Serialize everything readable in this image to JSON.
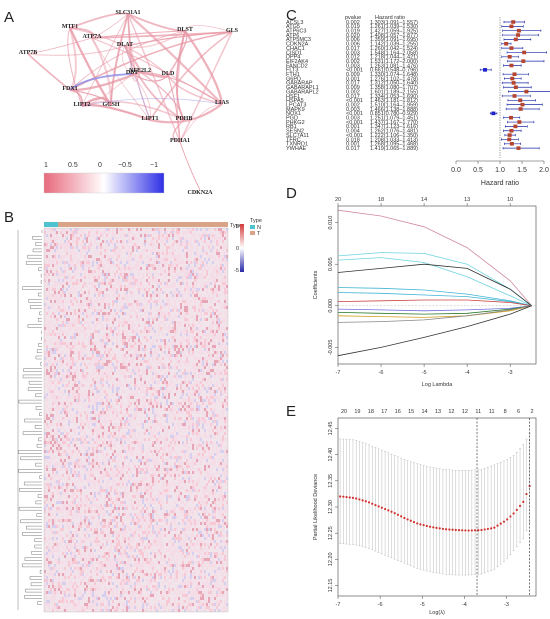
{
  "panels": {
    "A": "A",
    "B": "B",
    "C": "C",
    "D": "D",
    "E": "E"
  },
  "network": {
    "genes": [
      {
        "name": "SLC31A1"
      },
      {
        "name": "MTF1"
      },
      {
        "name": "DLST"
      },
      {
        "name": "GLS"
      },
      {
        "name": "ATP7A"
      },
      {
        "name": "DLAT"
      },
      {
        "name": "ATP7B"
      },
      {
        "name": "NFE2L2"
      },
      {
        "name": "DBT"
      },
      {
        "name": "DLD"
      },
      {
        "name": "FDX1"
      },
      {
        "name": "LIPT2"
      },
      {
        "name": "GCSH"
      },
      {
        "name": "LIPT1"
      },
      {
        "name": "PDHB"
      },
      {
        "name": "LIAS"
      },
      {
        "name": "PDHA1"
      },
      {
        "name": "CDKN2A"
      }
    ],
    "legend_ticks": [
      "1",
      "0.5",
      "0",
      "−0.5",
      "−1"
    ],
    "colors": {
      "positive": "#e8697c",
      "negative": "#2f2fe6",
      "edge": "#e898a6"
    }
  },
  "heatmap": {
    "type_label": "Type",
    "legend_title": "Type",
    "groups": [
      {
        "label": "N",
        "color": "#4ec2cf"
      },
      {
        "label": "T",
        "color": "#d9a387"
      }
    ],
    "scale_ticks": [
      "5",
      "0",
      "-5"
    ],
    "colors": {
      "high": "#d23a3a",
      "low": "#2828a8"
    }
  },
  "forest": {
    "col_pvalue": "pvalue",
    "col_hr": "Hazard ratio",
    "xlabel": "Hazard ratio",
    "xticks": [
      "0.0",
      "0.5",
      "1.0",
      "1.5",
      "2.0"
    ],
    "rows": [
      {
        "gene": "ACSL3",
        "p": "0.002",
        "hr": 1.3,
        "lo": 1.09,
        "hi": 1.56,
        "hr_text": "1.303(1.091–1.557)"
      },
      {
        "gene": "ATG5",
        "p": "0.019",
        "hr": 1.26,
        "lo": 1.04,
        "hi": 1.53,
        "hr_text": "1.261(1.039–1.530)"
      },
      {
        "gene": "ATP6C3",
        "p": "0.019",
        "hr": 1.43,
        "lo": 1.06,
        "hi": 1.93,
        "hr_text": "1.427(1.059–1.925)"
      },
      {
        "gene": "ATP6",
        "p": "0.020",
        "hr": 1.41,
        "lo": 1.06,
        "hi": 1.88,
        "hr_text": "1.408(1.057–1.877)"
      },
      {
        "gene": "ATP5MC3",
        "p": "0.006",
        "hr": 1.36,
        "lo": 1.09,
        "hi": 1.7,
        "hr_text": "1.359(1.091–1.695)"
      },
      {
        "gene": "CDKN2A",
        "p": "0.006",
        "hr": 1.14,
        "lo": 1.04,
        "hi": 1.25,
        "hr_text": "1.142(1.039–1.255)"
      },
      {
        "gene": "CHAC1",
        "p": "0.017",
        "hr": 1.26,
        "lo": 1.04,
        "hi": 1.52,
        "hr_text": "1.260(1.042–1.524)"
      },
      {
        "gene": "CISD1",
        "p": "0.003",
        "hr": 1.55,
        "lo": 1.16,
        "hi": 2.06,
        "hr_text": "1.548(1.164–2.058)"
      },
      {
        "gene": "DPP4",
        "p": "0.012",
        "hr": 1.22,
        "lo": 1.04,
        "hi": 1.42,
        "hr_text": "1.218(1.044–1.421)"
      },
      {
        "gene": "EIF2AK4",
        "p": "0.002",
        "hr": 1.53,
        "lo": 1.17,
        "hi": 2.0,
        "hr_text": "1.531(1.172–2.000)"
      },
      {
        "gene": "FANCD2",
        "p": "0.003",
        "hr": 1.26,
        "lo": 1.08,
        "hi": 1.48,
        "hr_text": "1.263(1.081–1.476)"
      },
      {
        "gene": "FLT3",
        "p": "<0.001",
        "hr": 0.66,
        "lo": 0.55,
        "hi": 0.8,
        "hr_text": "0.661(0.548–0.796)"
      },
      {
        "gene": "FTH1",
        "p": "0.009",
        "hr": 1.33,
        "lo": 1.07,
        "hi": 1.65,
        "hr_text": "1.330(1.074–1.648)"
      },
      {
        "gene": "G6PD",
        "p": "0.001",
        "hr": 1.28,
        "lo": 1.1,
        "hi": 1.48,
        "hr_text": "1.276(1.102–1.478)"
      },
      {
        "gene": "GABARAP",
        "p": "0.017",
        "hr": 1.31,
        "lo": 1.05,
        "hi": 1.64,
        "hr_text": "1.312(1.050–1.640)"
      },
      {
        "gene": "GABARAPL1",
        "p": "0.009",
        "hr": 1.36,
        "lo": 1.08,
        "hi": 1.71,
        "hr_text": "1.358(1.080–1.707)"
      },
      {
        "gene": "GABARAPL2",
        "p": "0.002",
        "hr": 1.6,
        "lo": 1.19,
        "hi": 2.15,
        "hr_text": "1.601(1.189–2.155)"
      },
      {
        "gene": "HSF1",
        "p": "0.017",
        "hr": 1.33,
        "lo": 1.05,
        "hi": 1.69,
        "hr_text": "1.334(1.053–1.690)"
      },
      {
        "gene": "HSPA5",
        "p": "<0.001",
        "hr": 1.46,
        "lo": 1.18,
        "hi": 1.81,
        "hr_text": "1.463(1.181–1.812)"
      },
      {
        "gene": "LPCAT3",
        "p": "0.002",
        "hr": 1.51,
        "lo": 1.16,
        "hi": 1.96,
        "hr_text": "1.510(1.164–1.959)"
      },
      {
        "gene": "MAPK9",
        "p": "0.003",
        "hr": 1.47,
        "lo": 1.14,
        "hi": 1.89,
        "hr_text": "1.466(1.138–1.888)"
      },
      {
        "gene": "NOX1",
        "p": "<0.001",
        "hr": 0.85,
        "lo": 0.78,
        "hi": 0.93,
        "hr_text": "0.851(0.780–0.929)"
      },
      {
        "gene": "PGD",
        "p": "0.003",
        "hr": 1.25,
        "lo": 1.08,
        "hi": 1.45,
        "hr_text": "1.251(1.079–1.451)"
      },
      {
        "gene": "PHKG2",
        "p": "<0.001",
        "hr": 1.44,
        "lo": 1.17,
        "hi": 1.77,
        "hr_text": "1.437(1.167–1.770)"
      },
      {
        "gene": "RB1",
        "p": "0.001",
        "hr": 1.35,
        "lo": 1.12,
        "hi": 1.62,
        "hr_text": "1.347(1.123–1.616)"
      },
      {
        "gene": "SESN2",
        "p": "0.004",
        "hr": 1.26,
        "lo": 1.08,
        "hi": 1.48,
        "hr_text": "1.262(1.076–1.481)"
      },
      {
        "gene": "SLC7A11",
        "p": "<0.001",
        "hr": 1.22,
        "lo": 1.11,
        "hi": 1.35,
        "hr_text": "1.222(1.106–1.350)"
      },
      {
        "gene": "TFRC",
        "p": "0.018",
        "hr": 1.21,
        "lo": 1.03,
        "hi": 1.42,
        "hr_text": "1.208(1.033–1.413)"
      },
      {
        "gene": "TXNRD1",
        "p": "0.001",
        "hr": 1.27,
        "lo": 1.1,
        "hi": 1.47,
        "hr_text": "1.268(1.095–1.468)"
      },
      {
        "gene": "YWHAE",
        "p": "0.017",
        "hr": 1.42,
        "lo": 1.07,
        "hi": 1.89,
        "hr_text": "1.419(1.065–1.889)"
      }
    ],
    "colors": {
      "risk": "#b5452f",
      "protective": "#2222cc",
      "ci": "#1b2aa8"
    }
  },
  "lasso_coef": {
    "xlabel": "Log Lambda",
    "ylabel": "Coefficients",
    "xticks": [
      "-7",
      "-6",
      "-5",
      "-4",
      "-3"
    ],
    "yticks": [
      "-0.005",
      "0.000",
      "0.005",
      "0.010"
    ],
    "top_ticks": [
      "20",
      "18",
      "14",
      "13",
      "10"
    ]
  },
  "chart_data": [
    {
      "type": "line",
      "xlabel": "Log Lambda",
      "ylabel": "Coefficients",
      "xlim": [
        -7,
        -2.4
      ],
      "ylim": [
        -0.007,
        0.012
      ],
      "series": [
        {
          "x": [
            -7,
            -6,
            -5,
            -4,
            -3,
            -2.5
          ],
          "values": [
            0.0115,
            0.0108,
            0.0095,
            0.007,
            0.003,
            0.0
          ]
        },
        {
          "x": [
            -7,
            -6,
            -5,
            -4,
            -3,
            -2.5
          ],
          "values": [
            0.006,
            0.0064,
            0.0063,
            0.005,
            0.002,
            0.0
          ]
        },
        {
          "x": [
            -7,
            -6,
            -5,
            -4,
            -3,
            -2.5
          ],
          "values": [
            0.0055,
            0.0058,
            0.0052,
            0.0035,
            0.0012,
            0.0
          ]
        },
        {
          "x": [
            -7,
            -6,
            -5,
            -4,
            -3,
            -2.5
          ],
          "values": [
            0.004,
            0.0045,
            0.005,
            0.0045,
            0.002,
            0.0
          ]
        },
        {
          "x": [
            -7,
            -6,
            -5,
            -4,
            -3,
            -2.5
          ],
          "values": [
            0.0022,
            0.0021,
            0.0019,
            0.0014,
            0.0006,
            0.0
          ]
        },
        {
          "x": [
            -7,
            -6,
            -5,
            -4,
            -3,
            -2.5
          ],
          "values": [
            0.0016,
            0.0015,
            0.0013,
            0.0011,
            0.0005,
            0.0
          ]
        },
        {
          "x": [
            -7,
            -6,
            -5,
            -4,
            -3,
            -2.5
          ],
          "values": [
            0.0005,
            0.0006,
            0.0007,
            0.0007,
            0.0004,
            0.0
          ]
        },
        {
          "x": [
            -7,
            -6,
            -5,
            -4,
            -3,
            -2.5
          ],
          "values": [
            -0.0004,
            -0.0005,
            -0.0006,
            -0.0005,
            -0.0003,
            0.0
          ]
        },
        {
          "x": [
            -7,
            -6,
            -5,
            -4,
            -3,
            -2.5
          ],
          "values": [
            -0.0008,
            -0.0009,
            -0.001,
            -0.0009,
            -0.0004,
            0.0
          ]
        },
        {
          "x": [
            -7,
            -6,
            -5,
            -4,
            -3,
            -2.5
          ],
          "values": [
            -0.0012,
            -0.0013,
            -0.0014,
            -0.0012,
            -0.0006,
            0.0
          ]
        },
        {
          "x": [
            -7,
            -6,
            -5,
            -4,
            -3,
            -2.5
          ],
          "values": [
            -0.002,
            -0.0019,
            -0.0017,
            -0.0012,
            -0.0005,
            0.0
          ]
        },
        {
          "x": [
            -7,
            -6,
            -5,
            -4,
            -3,
            -2.5
          ],
          "values": [
            -0.006,
            -0.005,
            -0.0038,
            -0.0025,
            -0.001,
            0.0
          ]
        }
      ]
    },
    {
      "type": "scatter",
      "xlabel": "Log(λ)",
      "ylabel": "Partial Likelihood Deviance",
      "xlim": [
        -7,
        -2.3
      ],
      "ylim": [
        12.13,
        12.47
      ],
      "top_ticks": [
        "20",
        "19",
        "18",
        "17",
        "16",
        "15",
        "14",
        "13",
        "12",
        "12",
        "11",
        "11",
        "8",
        "6",
        "2"
      ],
      "xticks": [
        "-7",
        "-6",
        "-5",
        "-4",
        "-3"
      ],
      "yticks": [
        "12.15",
        "12.20",
        "12.25",
        "12.30",
        "12.35",
        "12.40",
        "12.45"
      ],
      "vlines": [
        -3.7,
        -2.45
      ],
      "series": [
        {
          "x": [
            -6.9,
            -6.6,
            -6.3,
            -6.0,
            -5.7,
            -5.4,
            -5.1,
            -4.8,
            -4.5,
            -4.2,
            -3.9,
            -3.6,
            -3.3,
            -3.0,
            -2.8,
            -2.6,
            -2.45
          ],
          "values": [
            12.32,
            12.317,
            12.31,
            12.3,
            12.29,
            12.278,
            12.268,
            12.262,
            12.258,
            12.256,
            12.255,
            12.256,
            12.26,
            12.275,
            12.29,
            12.31,
            12.34
          ],
          "lo": [
            12.23,
            12.228,
            12.222,
            12.212,
            12.202,
            12.192,
            12.182,
            12.176,
            12.172,
            12.17,
            12.17,
            12.172,
            12.18,
            12.2,
            12.22,
            12.24,
            12.27
          ],
          "hi": [
            12.43,
            12.428,
            12.42,
            12.41,
            12.4,
            12.39,
            12.382,
            12.376,
            12.372,
            12.37,
            12.37,
            12.372,
            12.38,
            12.39,
            12.4,
            12.42,
            12.44
          ]
        }
      ]
    }
  ]
}
